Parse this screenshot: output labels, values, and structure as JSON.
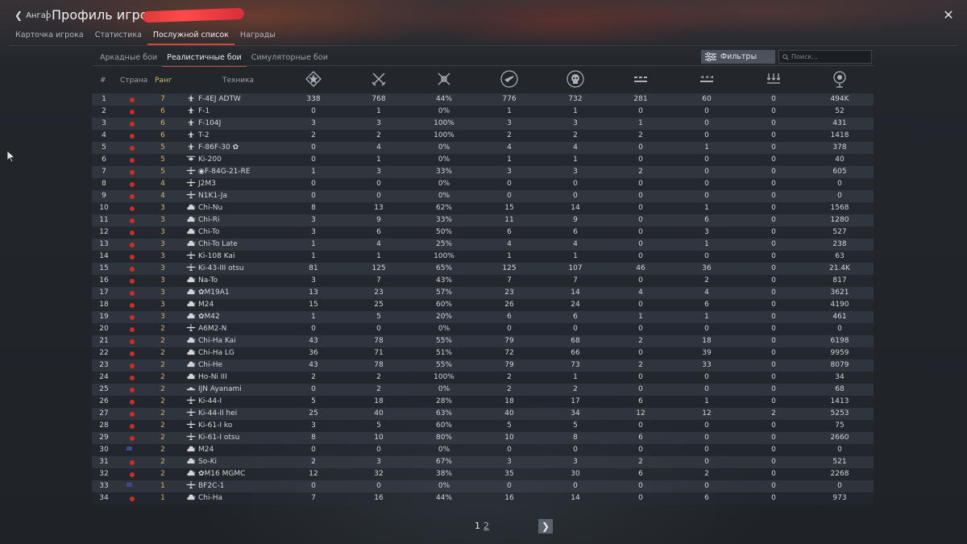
{
  "header": {
    "back_label": "Ангар",
    "title": "Профиль игрока"
  },
  "main_tabs": [
    {
      "label": "Карточка игрока",
      "active": false
    },
    {
      "label": "Статистика",
      "active": false
    },
    {
      "label": "Послужной список",
      "active": true
    },
    {
      "label": "Награды",
      "active": false
    }
  ],
  "mode_tabs": [
    {
      "label": "Аркадные бои",
      "active": false
    },
    {
      "label": "Реалистичные бои",
      "active": true
    },
    {
      "label": "Симуляторные бои",
      "active": false
    }
  ],
  "filter_label": "Фильтры",
  "search_placeholder": "Поиск...",
  "columns": {
    "num": "#",
    "country": "Страна",
    "rank": "Ранг",
    "vehicle": "Техника",
    "stat_icons": [
      "respawns-icon",
      "battles-icon",
      "win-rate-icon",
      "aircraft-kills-icon",
      "ground-kills-icon",
      "air-defense-kills-icon",
      "naval-kills-icon",
      "ship-kills-icon",
      "score-icon"
    ]
  },
  "colors": {
    "accent": "#c94a3d",
    "rank": "#d4b46a"
  },
  "rows": [
    {
      "n": "1",
      "country": "japan",
      "rank": "7",
      "type": "jet",
      "vehicle": "F-4EJ ADTW",
      "v": [
        "338",
        "768",
        "44%",
        "776",
        "732",
        "281",
        "60",
        "0",
        "494K"
      ]
    },
    {
      "n": "2",
      "country": "japan",
      "rank": "6",
      "type": "jet",
      "vehicle": "F-1",
      "v": [
        "0",
        "1",
        "0%",
        "1",
        "1",
        "0",
        "0",
        "0",
        "52"
      ]
    },
    {
      "n": "3",
      "country": "japan",
      "rank": "6",
      "type": "jet",
      "vehicle": "F-104J",
      "v": [
        "3",
        "3",
        "100%",
        "3",
        "3",
        "1",
        "0",
        "0",
        "431"
      ]
    },
    {
      "n": "4",
      "country": "japan",
      "rank": "6",
      "type": "jet",
      "vehicle": "T-2",
      "v": [
        "2",
        "2",
        "100%",
        "2",
        "2",
        "2",
        "0",
        "0",
        "1418"
      ]
    },
    {
      "n": "5",
      "country": "japan",
      "rank": "5",
      "type": "jet",
      "vehicle": "F-86F-30 ✿",
      "v": [
        "0",
        "4",
        "0%",
        "4",
        "4",
        "0",
        "1",
        "0",
        "378"
      ]
    },
    {
      "n": "6",
      "country": "japan",
      "rank": "5",
      "type": "heli",
      "vehicle": "Ki-200",
      "v": [
        "0",
        "1",
        "0%",
        "1",
        "1",
        "0",
        "0",
        "0",
        "40"
      ]
    },
    {
      "n": "7",
      "country": "japan",
      "rank": "5",
      "type": "plane",
      "vehicle": "◉F-84G-21-RE",
      "v": [
        "1",
        "3",
        "33%",
        "3",
        "3",
        "2",
        "0",
        "0",
        "605"
      ]
    },
    {
      "n": "8",
      "country": "japan",
      "rank": "4",
      "type": "plane",
      "vehicle": "J2M3",
      "v": [
        "0",
        "0",
        "0%",
        "0",
        "0",
        "0",
        "0",
        "0",
        "0"
      ]
    },
    {
      "n": "9",
      "country": "japan",
      "rank": "4",
      "type": "plane",
      "vehicle": "N1K1-Ja",
      "v": [
        "0",
        "0",
        "0%",
        "0",
        "0",
        "0",
        "0",
        "0",
        "0"
      ]
    },
    {
      "n": "10",
      "country": "japan",
      "rank": "3",
      "type": "tank",
      "vehicle": "Chi-Nu",
      "v": [
        "8",
        "13",
        "62%",
        "15",
        "14",
        "0",
        "1",
        "0",
        "1568"
      ]
    },
    {
      "n": "11",
      "country": "japan",
      "rank": "3",
      "type": "tank",
      "vehicle": "Chi-Ri",
      "v": [
        "3",
        "9",
        "33%",
        "11",
        "9",
        "0",
        "6",
        "0",
        "1280"
      ]
    },
    {
      "n": "12",
      "country": "japan",
      "rank": "3",
      "type": "tank",
      "vehicle": "Chi-To",
      "v": [
        "3",
        "6",
        "50%",
        "6",
        "6",
        "0",
        "3",
        "0",
        "527"
      ]
    },
    {
      "n": "13",
      "country": "japan",
      "rank": "3",
      "type": "tank",
      "vehicle": "Chi-To Late",
      "v": [
        "1",
        "4",
        "25%",
        "4",
        "4",
        "0",
        "1",
        "0",
        "238"
      ]
    },
    {
      "n": "14",
      "country": "japan",
      "rank": "3",
      "type": "plane",
      "vehicle": "Ki-108 Kai",
      "v": [
        "1",
        "1",
        "100%",
        "1",
        "1",
        "0",
        "0",
        "0",
        "63"
      ]
    },
    {
      "n": "15",
      "country": "japan",
      "rank": "3",
      "type": "plane",
      "vehicle": "Ki-43-III otsu",
      "v": [
        "81",
        "125",
        "65%",
        "125",
        "107",
        "46",
        "36",
        "0",
        "21.4K"
      ]
    },
    {
      "n": "16",
      "country": "japan",
      "rank": "3",
      "type": "tank",
      "vehicle": "Na-To",
      "v": [
        "3",
        "7",
        "43%",
        "7",
        "7",
        "0",
        "2",
        "0",
        "817"
      ]
    },
    {
      "n": "17",
      "country": "japan",
      "rank": "3",
      "type": "tank",
      "vehicle": "✿M19A1",
      "v": [
        "13",
        "23",
        "57%",
        "23",
        "14",
        "4",
        "4",
        "0",
        "3621"
      ]
    },
    {
      "n": "18",
      "country": "japan",
      "rank": "3",
      "type": "tank",
      "vehicle": "M24",
      "v": [
        "15",
        "25",
        "60%",
        "26",
        "24",
        "0",
        "6",
        "0",
        "4190"
      ]
    },
    {
      "n": "19",
      "country": "japan",
      "rank": "3",
      "type": "tank",
      "vehicle": "✿M42",
      "v": [
        "1",
        "5",
        "20%",
        "6",
        "6",
        "1",
        "1",
        "0",
        "461"
      ]
    },
    {
      "n": "20",
      "country": "japan",
      "rank": "2",
      "type": "plane",
      "vehicle": "A6M2-N",
      "v": [
        "0",
        "0",
        "0%",
        "0",
        "0",
        "0",
        "0",
        "0",
        "0"
      ]
    },
    {
      "n": "21",
      "country": "japan",
      "rank": "2",
      "type": "tank",
      "vehicle": "Chi-Ha Kai",
      "v": [
        "43",
        "78",
        "55%",
        "79",
        "68",
        "2",
        "18",
        "0",
        "6198"
      ]
    },
    {
      "n": "22",
      "country": "japan",
      "rank": "2",
      "type": "tank",
      "vehicle": "Chi-Ha LG",
      "v": [
        "36",
        "71",
        "51%",
        "72",
        "66",
        "0",
        "39",
        "0",
        "9959"
      ]
    },
    {
      "n": "23",
      "country": "japan",
      "rank": "2",
      "type": "tank",
      "vehicle": "Chi-He",
      "v": [
        "43",
        "78",
        "55%",
        "79",
        "73",
        "2",
        "33",
        "0",
        "8079"
      ]
    },
    {
      "n": "24",
      "country": "japan",
      "rank": "2",
      "type": "tank",
      "vehicle": "Ho-Ni III",
      "v": [
        "2",
        "2",
        "100%",
        "2",
        "1",
        "0",
        "0",
        "0",
        "34"
      ]
    },
    {
      "n": "25",
      "country": "japan",
      "rank": "2",
      "type": "ship",
      "vehicle": "IJN Ayanami",
      "v": [
        "0",
        "2",
        "0%",
        "2",
        "2",
        "0",
        "0",
        "0",
        "68"
      ]
    },
    {
      "n": "26",
      "country": "japan",
      "rank": "2",
      "type": "plane",
      "vehicle": "Ki-44-I",
      "v": [
        "5",
        "18",
        "28%",
        "18",
        "17",
        "6",
        "1",
        "0",
        "1413"
      ]
    },
    {
      "n": "27",
      "country": "japan",
      "rank": "2",
      "type": "plane",
      "vehicle": "Ki-44-II hei",
      "v": [
        "25",
        "40",
        "63%",
        "40",
        "34",
        "12",
        "12",
        "2",
        "5253"
      ]
    },
    {
      "n": "28",
      "country": "japan",
      "rank": "2",
      "type": "plane",
      "vehicle": "Ki-61-I ko",
      "v": [
        "3",
        "5",
        "60%",
        "5",
        "5",
        "0",
        "0",
        "0",
        "75"
      ]
    },
    {
      "n": "29",
      "country": "japan",
      "rank": "2",
      "type": "plane",
      "vehicle": "Ki-61-I otsu",
      "v": [
        "8",
        "10",
        "80%",
        "10",
        "8",
        "6",
        "0",
        "0",
        "2660"
      ]
    },
    {
      "n": "30",
      "country": "usa",
      "rank": "2",
      "type": "tank",
      "vehicle": "M24",
      "v": [
        "0",
        "0",
        "0%",
        "0",
        "0",
        "0",
        "0",
        "0",
        "0"
      ]
    },
    {
      "n": "31",
      "country": "japan",
      "rank": "2",
      "type": "tank",
      "vehicle": "So-Ki",
      "v": [
        "2",
        "3",
        "67%",
        "3",
        "3",
        "2",
        "0",
        "0",
        "521"
      ]
    },
    {
      "n": "32",
      "country": "japan",
      "rank": "2",
      "type": "tank",
      "vehicle": "✿M16 MGMC",
      "v": [
        "12",
        "32",
        "38%",
        "35",
        "30",
        "6",
        "2",
        "0",
        "2268"
      ]
    },
    {
      "n": "33",
      "country": "usa",
      "rank": "1",
      "type": "plane",
      "vehicle": "BF2C-1",
      "v": [
        "0",
        "0",
        "0%",
        "0",
        "0",
        "0",
        "0",
        "0",
        "0"
      ]
    },
    {
      "n": "34",
      "country": "japan",
      "rank": "1",
      "type": "tank",
      "vehicle": "Chi-Ha",
      "v": [
        "7",
        "16",
        "44%",
        "16",
        "14",
        "0",
        "6",
        "0",
        "973"
      ]
    }
  ],
  "pagination": {
    "current": "1",
    "other": "2"
  }
}
